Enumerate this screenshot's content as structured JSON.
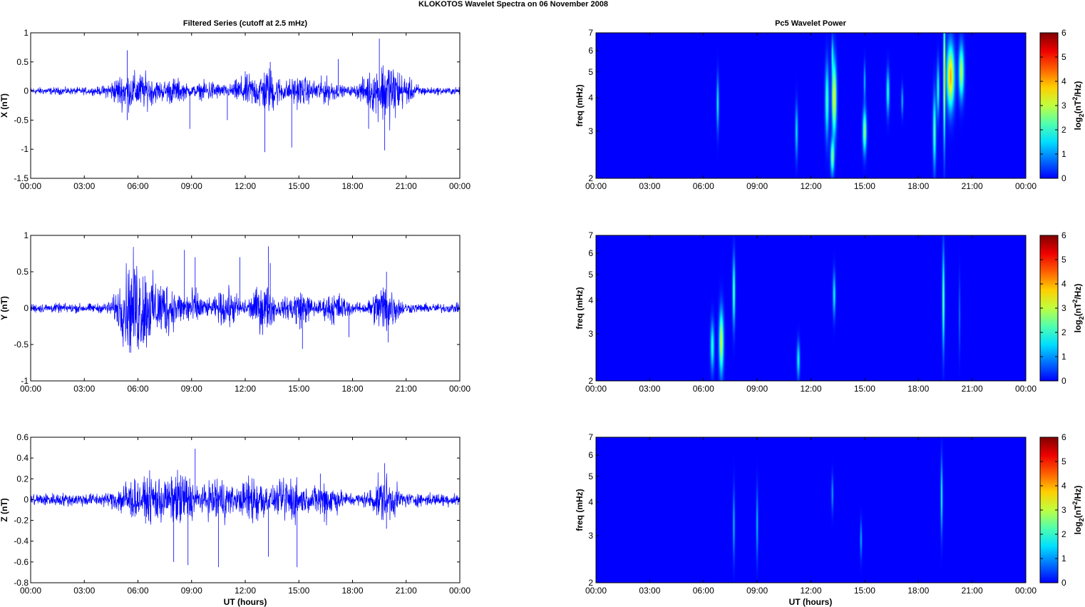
{
  "figure": {
    "title": "KLOKOTOS Wavelet Spectra on 06 November  2008",
    "left_title": "Filtered Series (cutoff at 2.5 mHz)",
    "right_title": "Pc5 Wavelet Power",
    "xlabel": "UT (hours)"
  },
  "colors": {
    "trace": "#0000ff",
    "background": "#00008f",
    "axis": "#000000"
  },
  "time_ticks": [
    "00:00",
    "03:00",
    "06:00",
    "09:00",
    "12:00",
    "15:00",
    "18:00",
    "21:00",
    "00:00"
  ],
  "chart_data": [
    {
      "type": "line",
      "component": "X",
      "ylabel": "X (nT)",
      "xlabel": "",
      "xlim": [
        0,
        24
      ],
      "ylim": [
        -1.5,
        1
      ],
      "yticks": [
        1,
        0.5,
        0,
        -0.5,
        -1,
        -1.5
      ],
      "ytick_labels": [
        "1",
        "0.5",
        "0",
        "-0.5",
        "-1",
        "-1.5"
      ],
      "activity": [
        {
          "t": 5.0,
          "amp": 0.08
        },
        {
          "t": 5.7,
          "amp": 0.07
        },
        {
          "t": 6.5,
          "amp": 0.09
        },
        {
          "t": 8.0,
          "amp": 0.08
        },
        {
          "t": 10.0,
          "amp": 0.06
        },
        {
          "t": 12.0,
          "amp": 0.1
        },
        {
          "t": 13.3,
          "amp": 0.16
        },
        {
          "t": 15.0,
          "amp": 0.1
        },
        {
          "t": 16.5,
          "amp": 0.08
        },
        {
          "t": 19.0,
          "amp": 0.1
        },
        {
          "t": 20.0,
          "amp": 0.22
        },
        {
          "t": 21.0,
          "amp": 0.06
        }
      ],
      "spikes": [
        {
          "t": 5.4,
          "v": 0.7
        },
        {
          "t": 5.4,
          "v": -0.5
        },
        {
          "t": 8.9,
          "v": -0.65
        },
        {
          "t": 11.0,
          "v": -0.5
        },
        {
          "t": 13.1,
          "v": -1.05
        },
        {
          "t": 13.4,
          "v": 0.5
        },
        {
          "t": 14.6,
          "v": -0.97
        },
        {
          "t": 17.2,
          "v": 0.55
        },
        {
          "t": 18.9,
          "v": -0.65
        },
        {
          "t": 19.5,
          "v": 0.9
        },
        {
          "t": 19.8,
          "v": -1.02
        },
        {
          "t": 20.3,
          "v": -0.3
        }
      ]
    },
    {
      "type": "line",
      "component": "Y",
      "ylabel": "Y (nT)",
      "xlabel": "",
      "xlim": [
        0,
        24
      ],
      "ylim": [
        -1,
        1
      ],
      "yticks": [
        1,
        0.5,
        0,
        -0.5,
        -1
      ],
      "ytick_labels": [
        "1",
        "0.5",
        "0",
        "-0.5",
        "-1"
      ],
      "activity": [
        {
          "t": 5.5,
          "amp": 0.22
        },
        {
          "t": 6.3,
          "amp": 0.2
        },
        {
          "t": 7.5,
          "amp": 0.15
        },
        {
          "t": 9.0,
          "amp": 0.1
        },
        {
          "t": 11.0,
          "amp": 0.1
        },
        {
          "t": 13.0,
          "amp": 0.13
        },
        {
          "t": 15.0,
          "amp": 0.1
        },
        {
          "t": 17.0,
          "amp": 0.08
        },
        {
          "t": 19.8,
          "amp": 0.15
        }
      ],
      "spikes": [
        {
          "t": 6.3,
          "v": -0.48
        },
        {
          "t": 8.6,
          "v": 0.8
        },
        {
          "t": 9.2,
          "v": 0.7
        },
        {
          "t": 11.7,
          "v": 0.7
        },
        {
          "t": 13.3,
          "v": 0.85
        },
        {
          "t": 13.4,
          "v": 0.62
        },
        {
          "t": 15.2,
          "v": -0.56
        },
        {
          "t": 17.8,
          "v": -0.4
        },
        {
          "t": 19.9,
          "v": 0.5
        },
        {
          "t": 20.0,
          "v": -0.47
        }
      ]
    },
    {
      "type": "line",
      "component": "Z",
      "ylabel": "Z (nT)",
      "xlabel": "UT (hours)",
      "xlim": [
        0,
        24
      ],
      "ylim": [
        -0.8,
        0.6
      ],
      "yticks": [
        0.6,
        0.4,
        0.2,
        0,
        -0.2,
        -0.4,
        -0.6,
        -0.8
      ],
      "ytick_labels": [
        "0.6",
        "0.4",
        "0.2",
        "0",
        "-0.2",
        "-0.4",
        "-0.6",
        "-0.8"
      ],
      "activity": [
        {
          "t": 5.5,
          "amp": 0.07
        },
        {
          "t": 7.0,
          "amp": 0.09
        },
        {
          "t": 8.5,
          "amp": 0.11
        },
        {
          "t": 10.5,
          "amp": 0.09
        },
        {
          "t": 12.5,
          "amp": 0.1
        },
        {
          "t": 14.5,
          "amp": 0.09
        },
        {
          "t": 16.5,
          "amp": 0.07
        },
        {
          "t": 19.8,
          "amp": 0.08
        }
      ],
      "spikes": [
        {
          "t": 8.0,
          "v": -0.6
        },
        {
          "t": 8.8,
          "v": -0.63
        },
        {
          "t": 9.2,
          "v": 0.49
        },
        {
          "t": 10.5,
          "v": -0.65
        },
        {
          "t": 13.3,
          "v": -0.55
        },
        {
          "t": 14.9,
          "v": -0.65
        },
        {
          "t": 16.2,
          "v": 0.25
        },
        {
          "t": 19.8,
          "v": 0.35
        },
        {
          "t": 19.9,
          "v": -0.28
        }
      ]
    },
    {
      "type": "heatmap",
      "component": "X",
      "ylabel": "freq (mHz)",
      "xlabel": "",
      "xlim": [
        0,
        24
      ],
      "ylim": [
        2,
        7
      ],
      "yscale": "log",
      "yticks": [
        2,
        3,
        4,
        5,
        6,
        7
      ],
      "colorbar": {
        "label": "log2(nT2/Hz)",
        "range": [
          0,
          6
        ],
        "ticks": [
          0,
          1,
          2,
          3,
          4,
          5,
          6
        ]
      },
      "blobs": [
        {
          "t": 6.8,
          "f": 3.8,
          "dt": 0.06,
          "df": 0.22,
          "power": 1.8
        },
        {
          "t": 11.2,
          "f": 3.0,
          "dt": 0.07,
          "df": 0.22,
          "power": 1.6
        },
        {
          "t": 12.9,
          "f": 3.9,
          "dt": 0.1,
          "df": 0.3,
          "power": 2.2
        },
        {
          "t": 13.3,
          "f": 4.0,
          "dt": 0.12,
          "df": 0.3,
          "power": 3.6
        },
        {
          "t": 13.2,
          "f": 2.4,
          "dt": 0.1,
          "df": 0.14,
          "power": 2.6
        },
        {
          "t": 13.2,
          "f": 5.8,
          "dt": 0.05,
          "df": 0.15,
          "power": 1.6
        },
        {
          "t": 15.0,
          "f": 3.0,
          "dt": 0.1,
          "df": 0.18,
          "power": 2.8
        },
        {
          "t": 15.0,
          "f": 4.6,
          "dt": 0.05,
          "df": 0.15,
          "power": 1.4
        },
        {
          "t": 16.3,
          "f": 4.2,
          "dt": 0.08,
          "df": 0.18,
          "power": 2.0
        },
        {
          "t": 17.1,
          "f": 3.9,
          "dt": 0.05,
          "df": 0.12,
          "power": 1.4
        },
        {
          "t": 18.9,
          "f": 3.0,
          "dt": 0.08,
          "df": 0.3,
          "power": 2.4
        },
        {
          "t": 19.1,
          "f": 4.3,
          "dt": 0.07,
          "df": 0.22,
          "power": 2.0
        },
        {
          "t": 19.45,
          "f": 4.8,
          "dt": 0.05,
          "df": 0.55,
          "power": 3.8
        },
        {
          "t": 19.8,
          "f": 4.8,
          "dt": 0.2,
          "df": 0.26,
          "power": 4.0
        },
        {
          "t": 20.4,
          "f": 5.0,
          "dt": 0.14,
          "df": 0.22,
          "power": 3.0
        }
      ]
    },
    {
      "type": "heatmap",
      "component": "Y",
      "ylabel": "freq (mHz)",
      "xlabel": "",
      "xlim": [
        0,
        24
      ],
      "ylim": [
        2,
        7
      ],
      "yscale": "log",
      "yticks": [
        2,
        3,
        4,
        5,
        6,
        7
      ],
      "colorbar": {
        "label": "log2(nT2/Hz)",
        "range": [
          0,
          6
        ],
        "ticks": [
          0,
          1,
          2,
          3,
          4,
          5,
          6
        ]
      },
      "blobs": [
        {
          "t": 6.5,
          "f": 2.7,
          "dt": 0.1,
          "df": 0.2,
          "power": 2.0
        },
        {
          "t": 7.0,
          "f": 2.8,
          "dt": 0.12,
          "df": 0.26,
          "power": 3.2
        },
        {
          "t": 7.7,
          "f": 4.3,
          "dt": 0.07,
          "df": 0.28,
          "power": 2.4
        },
        {
          "t": 11.3,
          "f": 2.4,
          "dt": 0.08,
          "df": 0.15,
          "power": 1.8
        },
        {
          "t": 13.3,
          "f": 4.2,
          "dt": 0.07,
          "df": 0.18,
          "power": 1.8
        },
        {
          "t": 19.4,
          "f": 4.0,
          "dt": 0.06,
          "df": 0.4,
          "power": 2.6
        },
        {
          "t": 20.3,
          "f": 3.5,
          "dt": 0.04,
          "df": 0.3,
          "power": 0.9
        }
      ]
    },
    {
      "type": "heatmap",
      "component": "Z",
      "ylabel": "freq (mHz)",
      "xlabel": "UT (hours)",
      "xlim": [
        0,
        24
      ],
      "ylim": [
        2,
        7
      ],
      "yscale": "log",
      "yticks": [
        2,
        3,
        4,
        5,
        6,
        7
      ],
      "colorbar": {
        "label": "log2(nT2/Hz)",
        "range": [
          0,
          6
        ],
        "ticks": [
          0,
          1,
          2,
          3,
          4,
          5,
          6
        ]
      },
      "blobs": [
        {
          "t": 7.7,
          "f": 3.3,
          "dt": 0.05,
          "df": 0.28,
          "power": 1.4
        },
        {
          "t": 9.0,
          "f": 3.3,
          "dt": 0.05,
          "df": 0.28,
          "power": 1.4
        },
        {
          "t": 13.2,
          "f": 4.3,
          "dt": 0.05,
          "df": 0.15,
          "power": 1.2
        },
        {
          "t": 14.8,
          "f": 2.9,
          "dt": 0.05,
          "df": 0.15,
          "power": 1.3
        },
        {
          "t": 19.3,
          "f": 4.2,
          "dt": 0.05,
          "df": 0.3,
          "power": 2.0
        }
      ]
    }
  ]
}
